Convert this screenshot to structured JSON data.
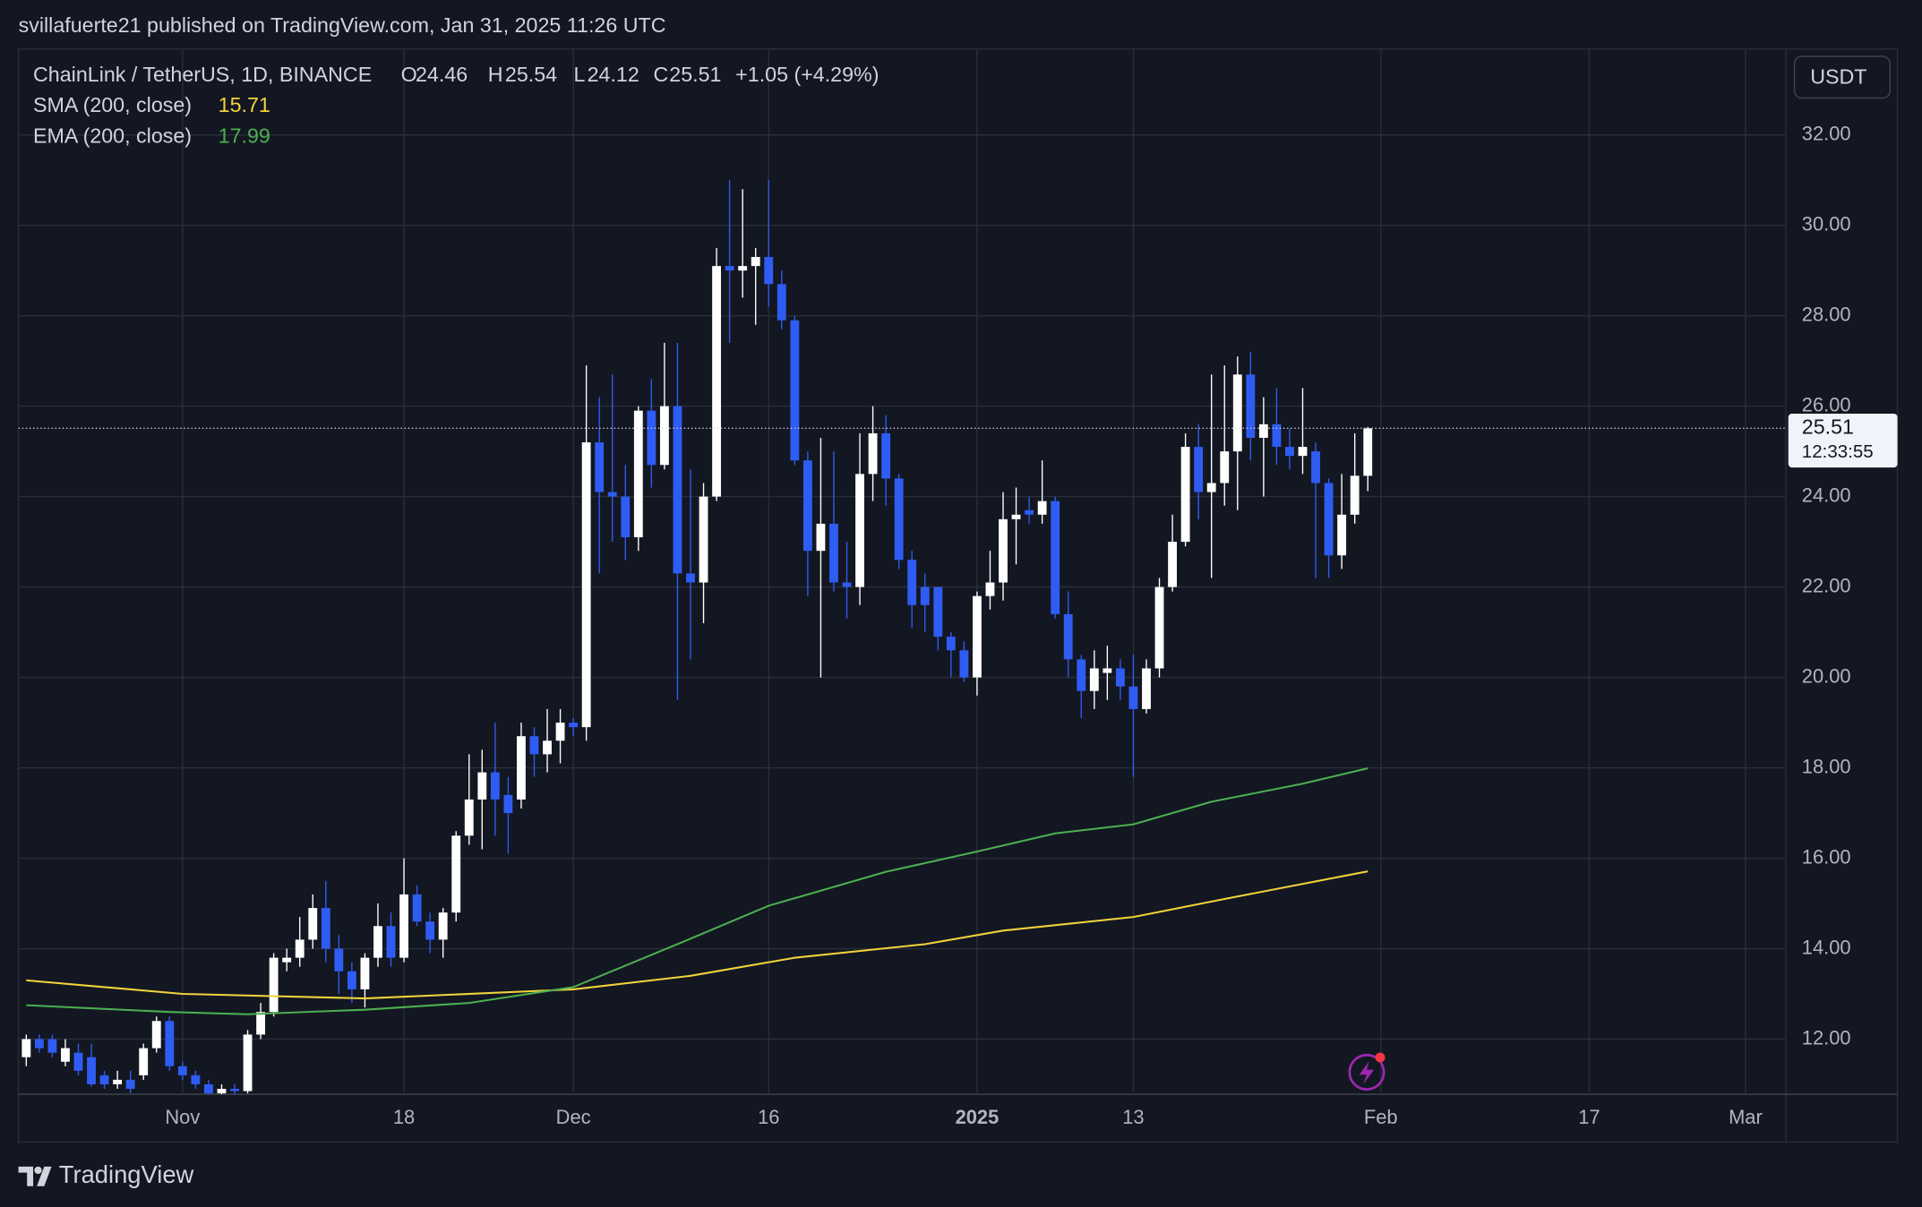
{
  "header": {
    "publisher": "svillafuerte21 published on TradingView.com, Jan 31, 2025 11:26 UTC"
  },
  "chart_data": {
    "type": "candlestick",
    "title": "ChainLink / TetherUS, 1D, BINANCE",
    "ohlc_labels": [
      "O",
      "H",
      "L",
      "C"
    ],
    "change": "+1.05 (+4.29%)",
    "currency": "USDT",
    "countdown": "12:33:55",
    "up_color": "#ffffff",
    "down_color": "#2f5cf2",
    "x": [
      0,
      1,
      2,
      3,
      4,
      5,
      6,
      7,
      8,
      9,
      10,
      11,
      12,
      13,
      14,
      15,
      16,
      17,
      18,
      19,
      20,
      21,
      22,
      23,
      24,
      25,
      26,
      27,
      28,
      29,
      30,
      31,
      32,
      33,
      34,
      35,
      36,
      37,
      38,
      39,
      40,
      41,
      42,
      43,
      44,
      45,
      46,
      47,
      48,
      49,
      50,
      51,
      52,
      53,
      54,
      55,
      56,
      57,
      58,
      59,
      60,
      61,
      62,
      63,
      64,
      65,
      66,
      67,
      68,
      69,
      70,
      71,
      72,
      73,
      74,
      75,
      76,
      77,
      78,
      79,
      80,
      81,
      82,
      83,
      84,
      85,
      86,
      87,
      88,
      89,
      90,
      91,
      92,
      93,
      94,
      95,
      96,
      97,
      98,
      99,
      100,
      101,
      102,
      103
    ],
    "open": [
      11.6,
      12.0,
      12.0,
      11.5,
      11.7,
      11.6,
      11.2,
      11.0,
      11.1,
      11.2,
      11.8,
      12.4,
      11.4,
      11.2,
      11.0,
      10.8,
      10.9,
      10.85,
      12.1,
      12.6,
      13.7,
      13.8,
      14.2,
      14.9,
      14.0,
      13.5,
      13.1,
      13.8,
      14.5,
      13.8,
      15.2,
      14.6,
      14.2,
      14.8,
      16.5,
      17.3,
      17.9,
      17.4,
      17.3,
      18.7,
      18.3,
      18.6,
      19.0,
      18.9,
      25.2,
      24.1,
      24.0,
      23.1,
      25.9,
      24.7,
      26.0,
      22.3,
      22.1,
      24.0,
      29.1,
      29.0,
      29.1,
      29.3,
      28.7,
      27.9,
      24.8,
      22.8,
      23.4,
      22.1,
      22.0,
      24.5,
      25.4,
      24.4,
      22.6,
      22.0,
      22.0,
      20.9,
      20.6,
      20.0,
      21.8,
      22.1,
      23.5,
      23.7,
      23.6,
      23.9,
      21.4,
      20.4,
      19.7,
      20.1,
      20.2,
      19.8,
      19.3,
      20.2,
      22.0,
      23.0,
      25.1,
      24.1,
      24.3,
      25.0,
      26.7,
      25.3,
      25.6,
      25.1,
      24.9,
      25.0,
      24.3,
      22.7,
      23.6,
      24.46
    ],
    "high": [
      12.1,
      12.1,
      12.1,
      12.0,
      11.9,
      11.9,
      11.3,
      11.3,
      11.3,
      11.9,
      12.5,
      12.5,
      11.5,
      11.3,
      11.1,
      11.0,
      11.0,
      12.2,
      12.8,
      13.9,
      14.0,
      14.7,
      15.2,
      15.5,
      14.3,
      13.7,
      13.9,
      15.0,
      14.8,
      16.0,
      15.4,
      14.8,
      14.9,
      16.6,
      18.3,
      18.4,
      19.0,
      17.8,
      19.0,
      18.9,
      19.3,
      19.3,
      19.1,
      26.9,
      26.2,
      26.7,
      24.7,
      26.0,
      26.6,
      27.4,
      27.4,
      24.6,
      24.3,
      29.5,
      31.0,
      30.8,
      29.5,
      31.0,
      29.0,
      28.0,
      25.0,
      25.3,
      25.0,
      23.0,
      25.4,
      26.0,
      25.8,
      24.5,
      22.8,
      22.3,
      22.0,
      21.0,
      20.8,
      21.9,
      22.8,
      24.1,
      24.2,
      24.0,
      24.8,
      24.0,
      21.9,
      20.5,
      20.6,
      20.7,
      20.4,
      20.5,
      20.4,
      22.2,
      23.6,
      25.4,
      25.6,
      26.7,
      26.9,
      27.1,
      27.2,
      26.2,
      26.4,
      25.5,
      26.4,
      25.2,
      24.4,
      24.5,
      25.4,
      25.54
    ],
    "low": [
      11.4,
      11.7,
      11.6,
      11.4,
      11.2,
      10.95,
      10.9,
      10.9,
      10.8,
      11.1,
      11.7,
      11.3,
      11.1,
      10.9,
      10.7,
      10.7,
      10.7,
      10.8,
      12.0,
      12.5,
      13.5,
      13.6,
      14.0,
      13.7,
      13.0,
      12.8,
      12.7,
      13.6,
      13.6,
      13.7,
      14.5,
      13.9,
      13.8,
      14.6,
      16.3,
      16.2,
      16.5,
      16.1,
      17.1,
      17.8,
      17.9,
      18.1,
      18.7,
      18.6,
      22.3,
      23.0,
      22.6,
      22.8,
      24.2,
      24.6,
      19.5,
      20.4,
      21.2,
      23.9,
      27.4,
      28.4,
      27.8,
      28.2,
      27.7,
      24.7,
      21.8,
      20.0,
      21.9,
      21.3,
      21.6,
      23.9,
      23.8,
      22.4,
      21.1,
      21.0,
      20.6,
      20.0,
      19.9,
      19.6,
      21.5,
      21.7,
      22.5,
      23.4,
      23.4,
      21.3,
      20.0,
      19.1,
      19.3,
      19.5,
      19.5,
      17.8,
      19.2,
      20.0,
      21.9,
      22.9,
      23.5,
      22.2,
      23.8,
      23.7,
      24.8,
      24.0,
      24.7,
      24.6,
      24.5,
      22.2,
      22.2,
      22.4,
      23.4,
      24.12
    ],
    "close": [
      12.0,
      11.8,
      11.7,
      11.8,
      11.3,
      11.0,
      11.0,
      11.1,
      10.9,
      11.8,
      12.4,
      11.4,
      11.2,
      11.0,
      10.8,
      10.9,
      10.85,
      12.1,
      12.6,
      13.8,
      13.8,
      14.2,
      14.9,
      14.0,
      13.5,
      13.1,
      13.8,
      14.5,
      13.8,
      15.2,
      14.6,
      14.2,
      14.8,
      16.5,
      17.3,
      17.9,
      17.3,
      17.0,
      18.7,
      18.3,
      18.6,
      19.0,
      18.9,
      25.2,
      24.1,
      24.0,
      23.1,
      25.9,
      24.7,
      26.0,
      22.3,
      22.1,
      24.0,
      29.1,
      29.0,
      29.1,
      29.3,
      28.7,
      27.9,
      24.8,
      22.8,
      23.4,
      22.1,
      22.0,
      24.5,
      25.4,
      24.4,
      22.6,
      21.6,
      21.6,
      20.9,
      20.6,
      20.0,
      21.8,
      22.1,
      23.5,
      23.6,
      23.6,
      23.9,
      21.4,
      20.4,
      19.7,
      20.2,
      20.2,
      19.8,
      19.3,
      20.2,
      22.0,
      23.0,
      25.1,
      24.1,
      24.3,
      25.0,
      26.7,
      25.3,
      25.6,
      25.1,
      24.9,
      25.1,
      24.3,
      22.7,
      23.6,
      24.46,
      25.51
    ],
    "indicators": [
      {
        "name": "SMA (200, close)",
        "color": "#f2d33b",
        "x": [
          0,
          12,
          26,
          42,
          51,
          59,
          69,
          75,
          85,
          92,
          103
        ],
        "values": [
          13.3,
          13.0,
          12.9,
          13.1,
          13.4,
          13.8,
          14.1,
          14.4,
          14.7,
          15.1,
          15.71
        ]
      },
      {
        "name": "EMA (200, close)",
        "color": "#4caf50",
        "x": [
          0,
          11,
          17,
          26,
          34,
          42,
          50,
          57,
          66,
          73,
          79,
          85,
          91,
          98,
          103
        ],
        "values": [
          12.75,
          12.6,
          12.55,
          12.65,
          12.8,
          13.15,
          14.1,
          14.95,
          15.7,
          16.15,
          16.55,
          16.75,
          17.25,
          17.65,
          17.99
        ]
      }
    ],
    "xlim": [
      -0.6,
      135.1
    ],
    "ylim": [
      10.78,
      33.9
    ],
    "xticks": [
      {
        "value": 12,
        "label": "Nov"
      },
      {
        "value": 29,
        "label": "18"
      },
      {
        "value": 42,
        "label": "Dec"
      },
      {
        "value": 57,
        "label": "16"
      },
      {
        "value": 73,
        "label": "2025"
      },
      {
        "value": 85,
        "label": "13"
      },
      {
        "value": 104,
        "label": "Feb"
      },
      {
        "value": 120,
        "label": "17"
      },
      {
        "value": 132,
        "label": "Mar"
      }
    ],
    "yticks": [
      {
        "value": 12,
        "label": "12.00"
      },
      {
        "value": 14,
        "label": "14.00"
      },
      {
        "value": 16,
        "label": "16.00"
      },
      {
        "value": 18,
        "label": "18.00"
      },
      {
        "value": 20,
        "label": "20.00"
      },
      {
        "value": 22,
        "label": "22.00"
      },
      {
        "value": 24,
        "label": "24.00"
      },
      {
        "value": 26,
        "label": "26.00"
      },
      {
        "value": 28,
        "label": "28.00"
      },
      {
        "value": 30,
        "label": "30.00"
      },
      {
        "value": 32,
        "label": "32.00"
      }
    ],
    "grid": true
  },
  "footer": {
    "brand": "TradingView"
  }
}
